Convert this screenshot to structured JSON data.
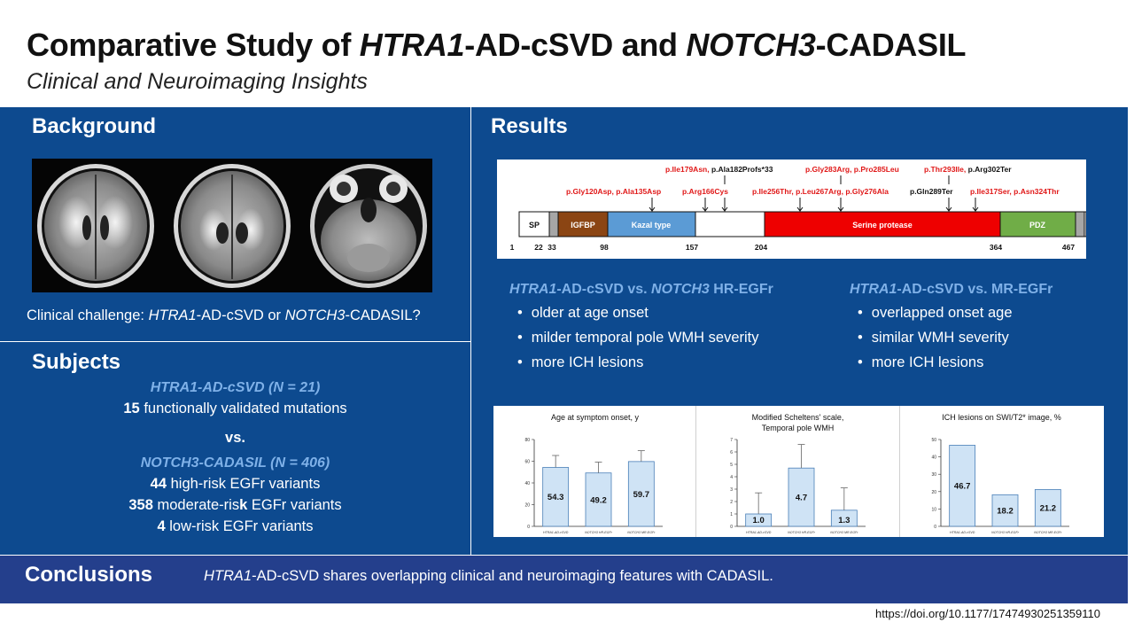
{
  "title": {
    "prefix": "Comparative Study of ",
    "gene1": "HTRA1",
    "mid": "-AD-cSVD and ",
    "gene2": "NOTCH3",
    "suffix": "-CADASIL"
  },
  "subtitle": "Clinical and Neuroimaging Insights",
  "background": {
    "heading": "Background",
    "challenge": {
      "prefix": "Clinical challenge:  ",
      "gene1": "HTRA1",
      "mid": "-AD-cSVD or ",
      "gene2": "NOTCH3",
      "suffix": "-CADASIL?"
    }
  },
  "subjects": {
    "heading": "Subjects",
    "group1_title": "HTRA1-AD-cSVD (N = 21)",
    "group1_count": "15",
    "group1_text": " functionally validated mutations",
    "vs": "vs.",
    "group2_title": "NOTCH3-CADASIL (N = 406)",
    "variants": [
      {
        "count": "44",
        "pre": " high-risk EGFr variants",
        "k": "",
        "post": ""
      },
      {
        "count": "358",
        "pre": " moderate-ris",
        "k": "k",
        "post": " EGFr variants"
      },
      {
        "count": "4",
        "pre": " low-risk EGFr variants",
        "k": "",
        "post": ""
      }
    ]
  },
  "results": {
    "heading": "Results",
    "protein": {
      "labels_top1": [
        {
          "text": "p.Ile179Asn,",
          "color": "red"
        },
        {
          "text": " p.Ala182Profs*33",
          "color": "black"
        }
      ],
      "labels_top2": [
        {
          "text": "p.Gly283Arg, p.Pro285Leu",
          "color": "red"
        }
      ],
      "labels_top3": [
        {
          "text": "p.Thr293Ile,",
          "color": "red"
        },
        {
          "text": " p.Arg302Ter",
          "color": "black"
        }
      ],
      "labels_row2": [
        {
          "text": "p.Gly120Asp, p.Ala135Asp",
          "color": "red"
        },
        {
          "text": "p.Arg166Cys",
          "color": "red"
        },
        {
          "text": "p.Ile256Thr, p.Leu267Arg, p.Gly276Ala",
          "color": "red"
        },
        {
          "text": "p.Gln289Ter",
          "color": "black"
        },
        {
          "text": "p.Ile317Ser, p.Asn324Thr",
          "color": "red"
        }
      ],
      "domains": [
        {
          "name": "SP",
          "color": "#ffffff",
          "text_color": "#111111"
        },
        {
          "name": "IGFBP",
          "color": "#8b4513",
          "text_color": "#ffffff"
        },
        {
          "name": "Kazal type",
          "color": "#5b9bd5",
          "text_color": "#ffffff"
        },
        {
          "name": "Serine protease",
          "color": "#ee0000",
          "text_color": "#ffffff"
        },
        {
          "name": "PDZ",
          "color": "#70ad47",
          "text_color": "#ffffff"
        }
      ],
      "positions": [
        "1",
        "22",
        "33",
        "98",
        "157",
        "204",
        "364",
        "467"
      ]
    },
    "comparison1": {
      "gene1": "HTRA1",
      "mid": "-AD-cSVD vs. ",
      "gene2": "NOTCH3",
      "suffix": " HR-EGFr",
      "bullets": [
        "older at age onset",
        "milder temporal pole WMH severity",
        "more ICH lesions"
      ]
    },
    "comparison2": {
      "gene1": "HTRA1",
      "suffix": "-AD-cSVD vs. MR-EGFr",
      "bullets": [
        "overlapped onset age",
        "similar WMH severity",
        "more ICH lesions"
      ]
    }
  },
  "chart_data": [
    {
      "type": "bar",
      "title": "Age at symptom onset, y",
      "categories": [
        "HTRA1-AD-cSVD",
        "NOTCH3 HR-EGFr",
        "NOTCH3 MR-EGFr"
      ],
      "values": [
        54.3,
        49.2,
        59.7
      ],
      "errors": [
        11,
        10,
        10
      ],
      "ylim": [
        0,
        80
      ],
      "yticks": [
        0,
        20,
        40,
        60,
        80
      ],
      "bar_color": "#cfe3f5"
    },
    {
      "type": "bar",
      "title": "Modified Scheltens' scale, Temporal pole WMH",
      "title_lines": [
        "Modified Scheltens' scale,",
        "Temporal pole WMH"
      ],
      "categories": [
        "HTRA1-AD-cSVD",
        "NOTCH3 HR-EGFr",
        "NOTCH3 MR-EGFr"
      ],
      "values": [
        1.0,
        4.7,
        1.3
      ],
      "errors": [
        1.7,
        1.9,
        1.8
      ],
      "ylim": [
        0,
        7
      ],
      "yticks": [
        0,
        1,
        2,
        3,
        4,
        5,
        6,
        7
      ],
      "bar_color": "#cfe3f5"
    },
    {
      "type": "bar",
      "title": "ICH lesions on SWI/T2* image, %",
      "categories": [
        "HTRA1-AD-cSVD",
        "NOTCH3 HR-EGFr",
        "NOTCH3 MR-EGFr"
      ],
      "values": [
        46.7,
        18.2,
        21.2
      ],
      "errors": [
        0,
        0,
        0
      ],
      "ylim": [
        0,
        50
      ],
      "yticks": [
        0,
        10,
        20,
        30,
        40,
        50
      ],
      "bar_color": "#cfe3f5"
    }
  ],
  "conclusions": {
    "heading": "Conclusions",
    "gene": "HTRA1",
    "text": "-AD-cSVD shares overlapping clinical and neuroimaging features with CADASIL."
  },
  "doi": "https://doi.org/10.1177/17474930251359110"
}
